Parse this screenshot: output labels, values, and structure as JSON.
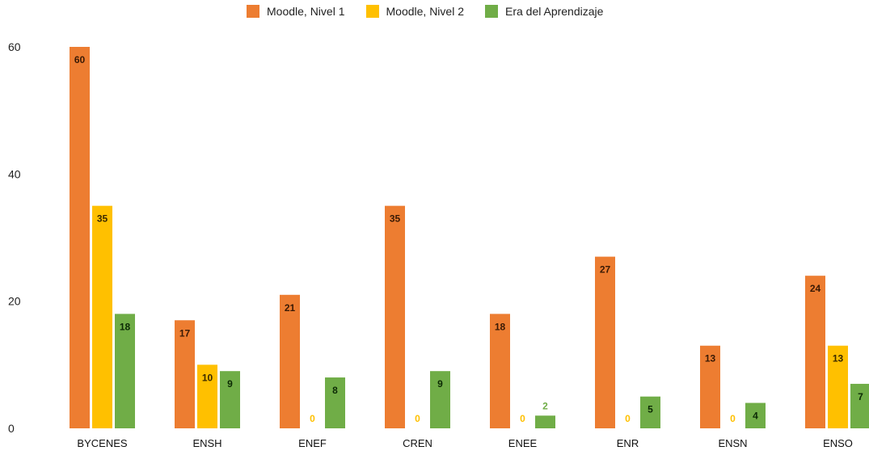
{
  "chart_data": {
    "type": "bar",
    "title": "",
    "xlabel": "",
    "ylabel": "",
    "ylim": [
      0,
      60
    ],
    "yticks": [
      0,
      20,
      40,
      60
    ],
    "grid": false,
    "legend_position": "top-center",
    "categories": [
      "BYCENES",
      "ENSH",
      "ENEF",
      "CREN",
      "ENEE",
      "ENR",
      "ENSN",
      "ENSO"
    ],
    "series": [
      {
        "name": "Moodle, Nivel 1",
        "color": "#ED7D31",
        "label_color": "#3a1a05",
        "values": [
          60,
          17,
          21,
          35,
          18,
          27,
          13,
          24
        ]
      },
      {
        "name": "Moodle, Nivel 2",
        "color": "#FFC000",
        "label_color": "#3a2a00",
        "values": [
          35,
          10,
          0,
          0,
          0,
          0,
          0,
          13
        ]
      },
      {
        "name": "Era del Aprendizaje",
        "color": "#70AD47",
        "label_color": "#0c2a05",
        "values": [
          18,
          9,
          8,
          9,
          2,
          5,
          4,
          7
        ]
      }
    ]
  }
}
